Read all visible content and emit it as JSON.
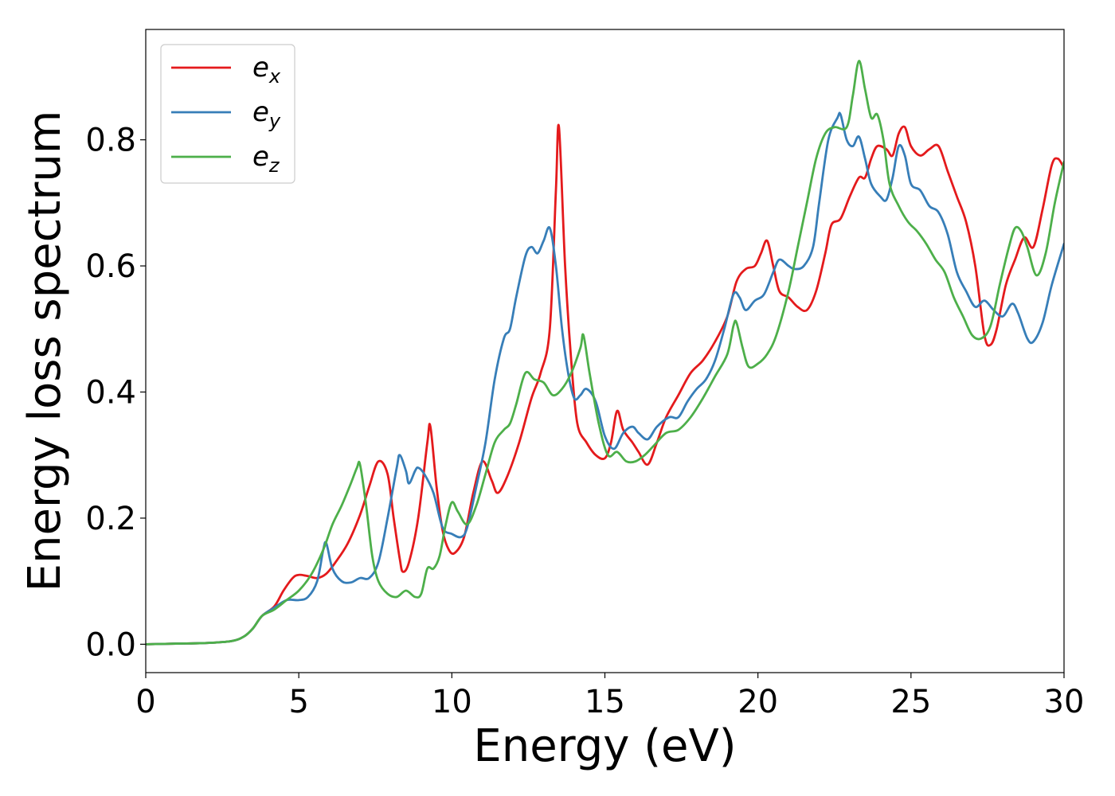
{
  "chart_data": {
    "type": "line",
    "xlabel": "Energy (eV)",
    "ylabel": "Energy loss spectrum",
    "xlim": [
      0,
      30
    ],
    "ylim": [
      -0.045,
      0.975
    ],
    "xticks": [
      0,
      5,
      10,
      15,
      20,
      25,
      30
    ],
    "xtick_labels": [
      "0",
      "5",
      "10",
      "15",
      "20",
      "25",
      "30"
    ],
    "yticks": [
      0.0,
      0.2,
      0.4,
      0.6,
      0.8
    ],
    "ytick_labels": [
      "0.0",
      "0.2",
      "0.4",
      "0.6",
      "0.8"
    ],
    "grid": false,
    "legend_position": "top-left",
    "series": [
      {
        "name": "e",
        "subscript": "x",
        "color": "#e41a1c",
        "points": [
          [
            0,
            0
          ],
          [
            1,
            0.001
          ],
          [
            2,
            0.002
          ],
          [
            2.8,
            0.005
          ],
          [
            3.2,
            0.012
          ],
          [
            3.5,
            0.025
          ],
          [
            3.8,
            0.045
          ],
          [
            4.2,
            0.06
          ],
          [
            4.5,
            0.085
          ],
          [
            4.8,
            0.105
          ],
          [
            5.0,
            0.11
          ],
          [
            5.3,
            0.108
          ],
          [
            5.6,
            0.105
          ],
          [
            5.9,
            0.112
          ],
          [
            6.2,
            0.13
          ],
          [
            6.6,
            0.16
          ],
          [
            7.0,
            0.205
          ],
          [
            7.3,
            0.25
          ],
          [
            7.6,
            0.29
          ],
          [
            7.9,
            0.27
          ],
          [
            8.1,
            0.2
          ],
          [
            8.3,
            0.135
          ],
          [
            8.4,
            0.115
          ],
          [
            8.6,
            0.13
          ],
          [
            8.9,
            0.2
          ],
          [
            9.2,
            0.32
          ],
          [
            9.3,
            0.345
          ],
          [
            9.5,
            0.25
          ],
          [
            9.7,
            0.18
          ],
          [
            9.9,
            0.15
          ],
          [
            10.1,
            0.145
          ],
          [
            10.4,
            0.17
          ],
          [
            10.7,
            0.24
          ],
          [
            11.0,
            0.29
          ],
          [
            11.3,
            0.26
          ],
          [
            11.5,
            0.24
          ],
          [
            11.8,
            0.265
          ],
          [
            12.2,
            0.32
          ],
          [
            12.6,
            0.39
          ],
          [
            12.9,
            0.43
          ],
          [
            13.2,
            0.5
          ],
          [
            13.4,
            0.72
          ],
          [
            13.5,
            0.82
          ],
          [
            13.7,
            0.6
          ],
          [
            13.9,
            0.45
          ],
          [
            14.1,
            0.35
          ],
          [
            14.4,
            0.32
          ],
          [
            14.7,
            0.3
          ],
          [
            15.0,
            0.295
          ],
          [
            15.2,
            0.32
          ],
          [
            15.4,
            0.37
          ],
          [
            15.6,
            0.34
          ],
          [
            15.9,
            0.32
          ],
          [
            16.1,
            0.305
          ],
          [
            16.4,
            0.285
          ],
          [
            16.7,
            0.32
          ],
          [
            17.0,
            0.36
          ],
          [
            17.4,
            0.395
          ],
          [
            17.8,
            0.43
          ],
          [
            18.2,
            0.45
          ],
          [
            18.6,
            0.48
          ],
          [
            19.0,
            0.52
          ],
          [
            19.3,
            0.575
          ],
          [
            19.6,
            0.595
          ],
          [
            19.9,
            0.6
          ],
          [
            20.1,
            0.62
          ],
          [
            20.3,
            0.64
          ],
          [
            20.5,
            0.6
          ],
          [
            20.7,
            0.56
          ],
          [
            21.0,
            0.55
          ],
          [
            21.3,
            0.535
          ],
          [
            21.6,
            0.53
          ],
          [
            21.9,
            0.56
          ],
          [
            22.2,
            0.62
          ],
          [
            22.4,
            0.665
          ],
          [
            22.7,
            0.675
          ],
          [
            23.0,
            0.71
          ],
          [
            23.3,
            0.74
          ],
          [
            23.5,
            0.74
          ],
          [
            23.7,
            0.77
          ],
          [
            23.9,
            0.79
          ],
          [
            24.2,
            0.785
          ],
          [
            24.4,
            0.775
          ],
          [
            24.6,
            0.81
          ],
          [
            24.8,
            0.82
          ],
          [
            25.0,
            0.79
          ],
          [
            25.3,
            0.775
          ],
          [
            25.6,
            0.785
          ],
          [
            25.9,
            0.79
          ],
          [
            26.2,
            0.75
          ],
          [
            26.5,
            0.71
          ],
          [
            26.8,
            0.67
          ],
          [
            27.1,
            0.6
          ],
          [
            27.4,
            0.49
          ],
          [
            27.6,
            0.475
          ],
          [
            27.8,
            0.5
          ],
          [
            28.1,
            0.57
          ],
          [
            28.4,
            0.61
          ],
          [
            28.7,
            0.645
          ],
          [
            29.0,
            0.63
          ],
          [
            29.3,
            0.69
          ],
          [
            29.6,
            0.76
          ],
          [
            29.8,
            0.77
          ],
          [
            30.0,
            0.755
          ]
        ]
      },
      {
        "name": "e",
        "subscript": "y",
        "color": "#377eb8",
        "points": [
          [
            0,
            0
          ],
          [
            1,
            0.001
          ],
          [
            2,
            0.002
          ],
          [
            2.8,
            0.005
          ],
          [
            3.2,
            0.012
          ],
          [
            3.5,
            0.025
          ],
          [
            3.8,
            0.045
          ],
          [
            4.2,
            0.058
          ],
          [
            4.6,
            0.07
          ],
          [
            5.0,
            0.07
          ],
          [
            5.3,
            0.075
          ],
          [
            5.6,
            0.1
          ],
          [
            5.8,
            0.15
          ],
          [
            5.9,
            0.16
          ],
          [
            6.1,
            0.12
          ],
          [
            6.4,
            0.1
          ],
          [
            6.7,
            0.098
          ],
          [
            7.0,
            0.105
          ],
          [
            7.3,
            0.105
          ],
          [
            7.6,
            0.13
          ],
          [
            7.9,
            0.2
          ],
          [
            8.2,
            0.28
          ],
          [
            8.3,
            0.3
          ],
          [
            8.5,
            0.275
          ],
          [
            8.6,
            0.255
          ],
          [
            8.8,
            0.275
          ],
          [
            8.9,
            0.28
          ],
          [
            9.1,
            0.27
          ],
          [
            9.4,
            0.24
          ],
          [
            9.7,
            0.185
          ],
          [
            10.0,
            0.175
          ],
          [
            10.3,
            0.17
          ],
          [
            10.5,
            0.185
          ],
          [
            10.8,
            0.25
          ],
          [
            11.1,
            0.32
          ],
          [
            11.4,
            0.42
          ],
          [
            11.7,
            0.485
          ],
          [
            11.9,
            0.5
          ],
          [
            12.1,
            0.55
          ],
          [
            12.4,
            0.615
          ],
          [
            12.6,
            0.63
          ],
          [
            12.8,
            0.62
          ],
          [
            13.0,
            0.64
          ],
          [
            13.2,
            0.66
          ],
          [
            13.4,
            0.6
          ],
          [
            13.6,
            0.5
          ],
          [
            13.8,
            0.43
          ],
          [
            14.0,
            0.39
          ],
          [
            14.2,
            0.395
          ],
          [
            14.4,
            0.405
          ],
          [
            14.7,
            0.385
          ],
          [
            15.0,
            0.33
          ],
          [
            15.3,
            0.31
          ],
          [
            15.6,
            0.335
          ],
          [
            15.9,
            0.345
          ],
          [
            16.1,
            0.335
          ],
          [
            16.4,
            0.325
          ],
          [
            16.7,
            0.345
          ],
          [
            17.1,
            0.36
          ],
          [
            17.4,
            0.36
          ],
          [
            17.7,
            0.385
          ],
          [
            18.0,
            0.405
          ],
          [
            18.3,
            0.42
          ],
          [
            18.6,
            0.45
          ],
          [
            18.9,
            0.5
          ],
          [
            19.2,
            0.555
          ],
          [
            19.4,
            0.55
          ],
          [
            19.6,
            0.53
          ],
          [
            19.9,
            0.545
          ],
          [
            20.2,
            0.555
          ],
          [
            20.5,
            0.59
          ],
          [
            20.7,
            0.61
          ],
          [
            21.0,
            0.6
          ],
          [
            21.2,
            0.595
          ],
          [
            21.5,
            0.6
          ],
          [
            21.8,
            0.63
          ],
          [
            22.0,
            0.7
          ],
          [
            22.3,
            0.8
          ],
          [
            22.6,
            0.835
          ],
          [
            22.7,
            0.84
          ],
          [
            22.9,
            0.8
          ],
          [
            23.1,
            0.79
          ],
          [
            23.3,
            0.805
          ],
          [
            23.5,
            0.77
          ],
          [
            23.7,
            0.73
          ],
          [
            24.0,
            0.71
          ],
          [
            24.2,
            0.705
          ],
          [
            24.4,
            0.74
          ],
          [
            24.6,
            0.79
          ],
          [
            24.8,
            0.775
          ],
          [
            25.0,
            0.73
          ],
          [
            25.3,
            0.72
          ],
          [
            25.6,
            0.695
          ],
          [
            25.9,
            0.685
          ],
          [
            26.2,
            0.65
          ],
          [
            26.5,
            0.59
          ],
          [
            26.8,
            0.56
          ],
          [
            27.1,
            0.535
          ],
          [
            27.4,
            0.545
          ],
          [
            27.7,
            0.53
          ],
          [
            28.0,
            0.52
          ],
          [
            28.3,
            0.54
          ],
          [
            28.5,
            0.525
          ],
          [
            28.8,
            0.485
          ],
          [
            29.0,
            0.48
          ],
          [
            29.3,
            0.51
          ],
          [
            29.6,
            0.57
          ],
          [
            30.0,
            0.635
          ]
        ]
      },
      {
        "name": "e",
        "subscript": "z",
        "color": "#4daf4a",
        "points": [
          [
            0,
            0
          ],
          [
            1,
            0.001
          ],
          [
            2,
            0.002
          ],
          [
            2.8,
            0.005
          ],
          [
            3.2,
            0.012
          ],
          [
            3.5,
            0.025
          ],
          [
            3.8,
            0.045
          ],
          [
            4.2,
            0.055
          ],
          [
            4.6,
            0.07
          ],
          [
            5.0,
            0.085
          ],
          [
            5.4,
            0.11
          ],
          [
            5.8,
            0.15
          ],
          [
            6.1,
            0.19
          ],
          [
            6.4,
            0.22
          ],
          [
            6.7,
            0.255
          ],
          [
            6.9,
            0.28
          ],
          [
            7.0,
            0.285
          ],
          [
            7.2,
            0.22
          ],
          [
            7.4,
            0.14
          ],
          [
            7.6,
            0.1
          ],
          [
            7.9,
            0.08
          ],
          [
            8.2,
            0.075
          ],
          [
            8.5,
            0.085
          ],
          [
            8.8,
            0.075
          ],
          [
            9.0,
            0.08
          ],
          [
            9.2,
            0.12
          ],
          [
            9.4,
            0.12
          ],
          [
            9.6,
            0.14
          ],
          [
            9.8,
            0.19
          ],
          [
            10.0,
            0.225
          ],
          [
            10.2,
            0.21
          ],
          [
            10.5,
            0.19
          ],
          [
            10.8,
            0.22
          ],
          [
            11.1,
            0.27
          ],
          [
            11.4,
            0.32
          ],
          [
            11.7,
            0.34
          ],
          [
            11.9,
            0.35
          ],
          [
            12.1,
            0.38
          ],
          [
            12.4,
            0.43
          ],
          [
            12.7,
            0.42
          ],
          [
            13.0,
            0.415
          ],
          [
            13.3,
            0.395
          ],
          [
            13.6,
            0.405
          ],
          [
            13.9,
            0.43
          ],
          [
            14.2,
            0.47
          ],
          [
            14.3,
            0.49
          ],
          [
            14.5,
            0.43
          ],
          [
            14.8,
            0.35
          ],
          [
            15.1,
            0.3
          ],
          [
            15.4,
            0.305
          ],
          [
            15.7,
            0.29
          ],
          [
            16.0,
            0.29
          ],
          [
            16.3,
            0.3
          ],
          [
            16.6,
            0.315
          ],
          [
            17.0,
            0.335
          ],
          [
            17.4,
            0.34
          ],
          [
            17.8,
            0.36
          ],
          [
            18.2,
            0.39
          ],
          [
            18.6,
            0.425
          ],
          [
            19.0,
            0.46
          ],
          [
            19.2,
            0.505
          ],
          [
            19.3,
            0.51
          ],
          [
            19.5,
            0.47
          ],
          [
            19.7,
            0.44
          ],
          [
            20.0,
            0.445
          ],
          [
            20.3,
            0.46
          ],
          [
            20.6,
            0.49
          ],
          [
            21.0,
            0.56
          ],
          [
            21.3,
            0.63
          ],
          [
            21.6,
            0.7
          ],
          [
            21.9,
            0.77
          ],
          [
            22.2,
            0.81
          ],
          [
            22.5,
            0.82
          ],
          [
            22.9,
            0.82
          ],
          [
            23.1,
            0.87
          ],
          [
            23.3,
            0.925
          ],
          [
            23.5,
            0.88
          ],
          [
            23.7,
            0.835
          ],
          [
            23.9,
            0.84
          ],
          [
            24.1,
            0.8
          ],
          [
            24.3,
            0.73
          ],
          [
            24.6,
            0.695
          ],
          [
            24.9,
            0.67
          ],
          [
            25.2,
            0.655
          ],
          [
            25.5,
            0.635
          ],
          [
            25.8,
            0.61
          ],
          [
            26.1,
            0.59
          ],
          [
            26.4,
            0.55
          ],
          [
            26.7,
            0.52
          ],
          [
            27.0,
            0.49
          ],
          [
            27.3,
            0.485
          ],
          [
            27.6,
            0.505
          ],
          [
            27.9,
            0.57
          ],
          [
            28.2,
            0.63
          ],
          [
            28.4,
            0.66
          ],
          [
            28.6,
            0.655
          ],
          [
            28.8,
            0.63
          ],
          [
            29.1,
            0.585
          ],
          [
            29.4,
            0.62
          ],
          [
            29.7,
            0.7
          ],
          [
            30.0,
            0.765
          ]
        ]
      }
    ]
  }
}
